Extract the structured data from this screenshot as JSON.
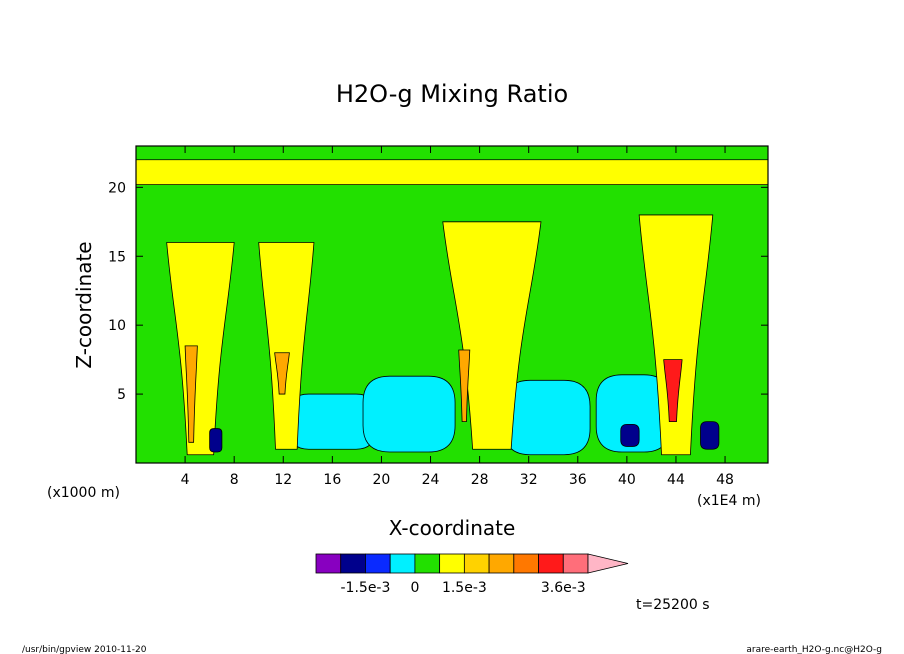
{
  "chart_data": {
    "type": "heatmap",
    "title": "H2O-g Mixing Ratio",
    "xlabel": "X-coordinate",
    "ylabel": "Z-coordinate",
    "x_unit_left": "(x1000 m)",
    "x_unit_right": "(x1E4 m)",
    "xlim": [
      0,
      51.5
    ],
    "ylim": [
      0,
      23
    ],
    "x_ticks": [
      4,
      8,
      12,
      16,
      20,
      24,
      28,
      32,
      36,
      40,
      44,
      48
    ],
    "y_ticks": [
      5,
      10,
      15,
      20
    ],
    "colorbar": {
      "labels": [
        {
          "text": "-1.5e-3",
          "index": 2
        },
        {
          "text": "0",
          "index": 4
        },
        {
          "text": "1.5e-3",
          "index": 6
        },
        {
          "text": "3.6e-3",
          "index": 10
        }
      ],
      "colors": [
        "#8800c0",
        "#00008c",
        "#0a2aff",
        "#00f0ff",
        "#22e000",
        "#ffff00",
        "#ffd200",
        "#ffa800",
        "#ff7800",
        "#ff1a1a",
        "#ff6e7a",
        "#ffb6c6"
      ],
      "arrow_color": "#ffb6c6"
    },
    "time_label": "t=25200 s",
    "background_color": "#22e000",
    "features": [
      {
        "kind": "cyan_region",
        "color": "#00f0ff",
        "x": [
          12.5,
          19.5
        ],
        "z": [
          1,
          5
        ]
      },
      {
        "kind": "cyan_region",
        "color": "#00f0ff",
        "x": [
          18.5,
          26
        ],
        "z": [
          0.8,
          6.3
        ]
      },
      {
        "kind": "cyan_region",
        "color": "#00f0ff",
        "x": [
          30,
          37
        ],
        "z": [
          0.6,
          6
        ]
      },
      {
        "kind": "cyan_region",
        "color": "#00f0ff",
        "x": [
          37.5,
          43.5
        ],
        "z": [
          0.8,
          6.4
        ]
      },
      {
        "kind": "yellow_plume",
        "color": "#ffff00",
        "x": [
          2.5,
          8
        ],
        "z": [
          0.6,
          16
        ]
      },
      {
        "kind": "yellow_plume",
        "color": "#ffff00",
        "x": [
          10,
          14.5
        ],
        "z": [
          1,
          16
        ]
      },
      {
        "kind": "yellow_plume",
        "color": "#ffff00",
        "x": [
          25,
          33
        ],
        "z": [
          1,
          17.5
        ]
      },
      {
        "kind": "yellow_plume",
        "color": "#ffff00",
        "x": [
          41,
          47
        ],
        "z": [
          0.6,
          18
        ]
      },
      {
        "kind": "yellow_band",
        "color": "#ffff00",
        "x": [
          0,
          51.5
        ],
        "z": [
          20.2,
          22
        ]
      },
      {
        "kind": "orange_core",
        "color": "#ffa800",
        "x": [
          4,
          5
        ],
        "z": [
          1.5,
          8.5
        ]
      },
      {
        "kind": "orange_core",
        "color": "#ffa800",
        "x": [
          11.3,
          12.5
        ],
        "z": [
          5,
          8
        ]
      },
      {
        "kind": "orange_core",
        "color": "#ffa800",
        "x": [
          26.3,
          27.2
        ],
        "z": [
          3,
          8.2
        ]
      },
      {
        "kind": "red_core",
        "color": "#ff1a1a",
        "x": [
          43,
          44.5
        ],
        "z": [
          3,
          7.5
        ]
      },
      {
        "kind": "navy_blob",
        "color": "#00008c",
        "x": [
          6,
          7
        ],
        "z": [
          0.8,
          2.5
        ]
      },
      {
        "kind": "navy_blob",
        "color": "#00008c",
        "x": [
          39.5,
          41
        ],
        "z": [
          1.2,
          2.8
        ]
      },
      {
        "kind": "navy_blob",
        "color": "#00008c",
        "x": [
          46,
          47.5
        ],
        "z": [
          1,
          3
        ]
      }
    ]
  },
  "footer": {
    "left": "/usr/bin/gpview   2010-11-20",
    "right": "arare-earth_H2O-g.nc@H2O-g"
  }
}
